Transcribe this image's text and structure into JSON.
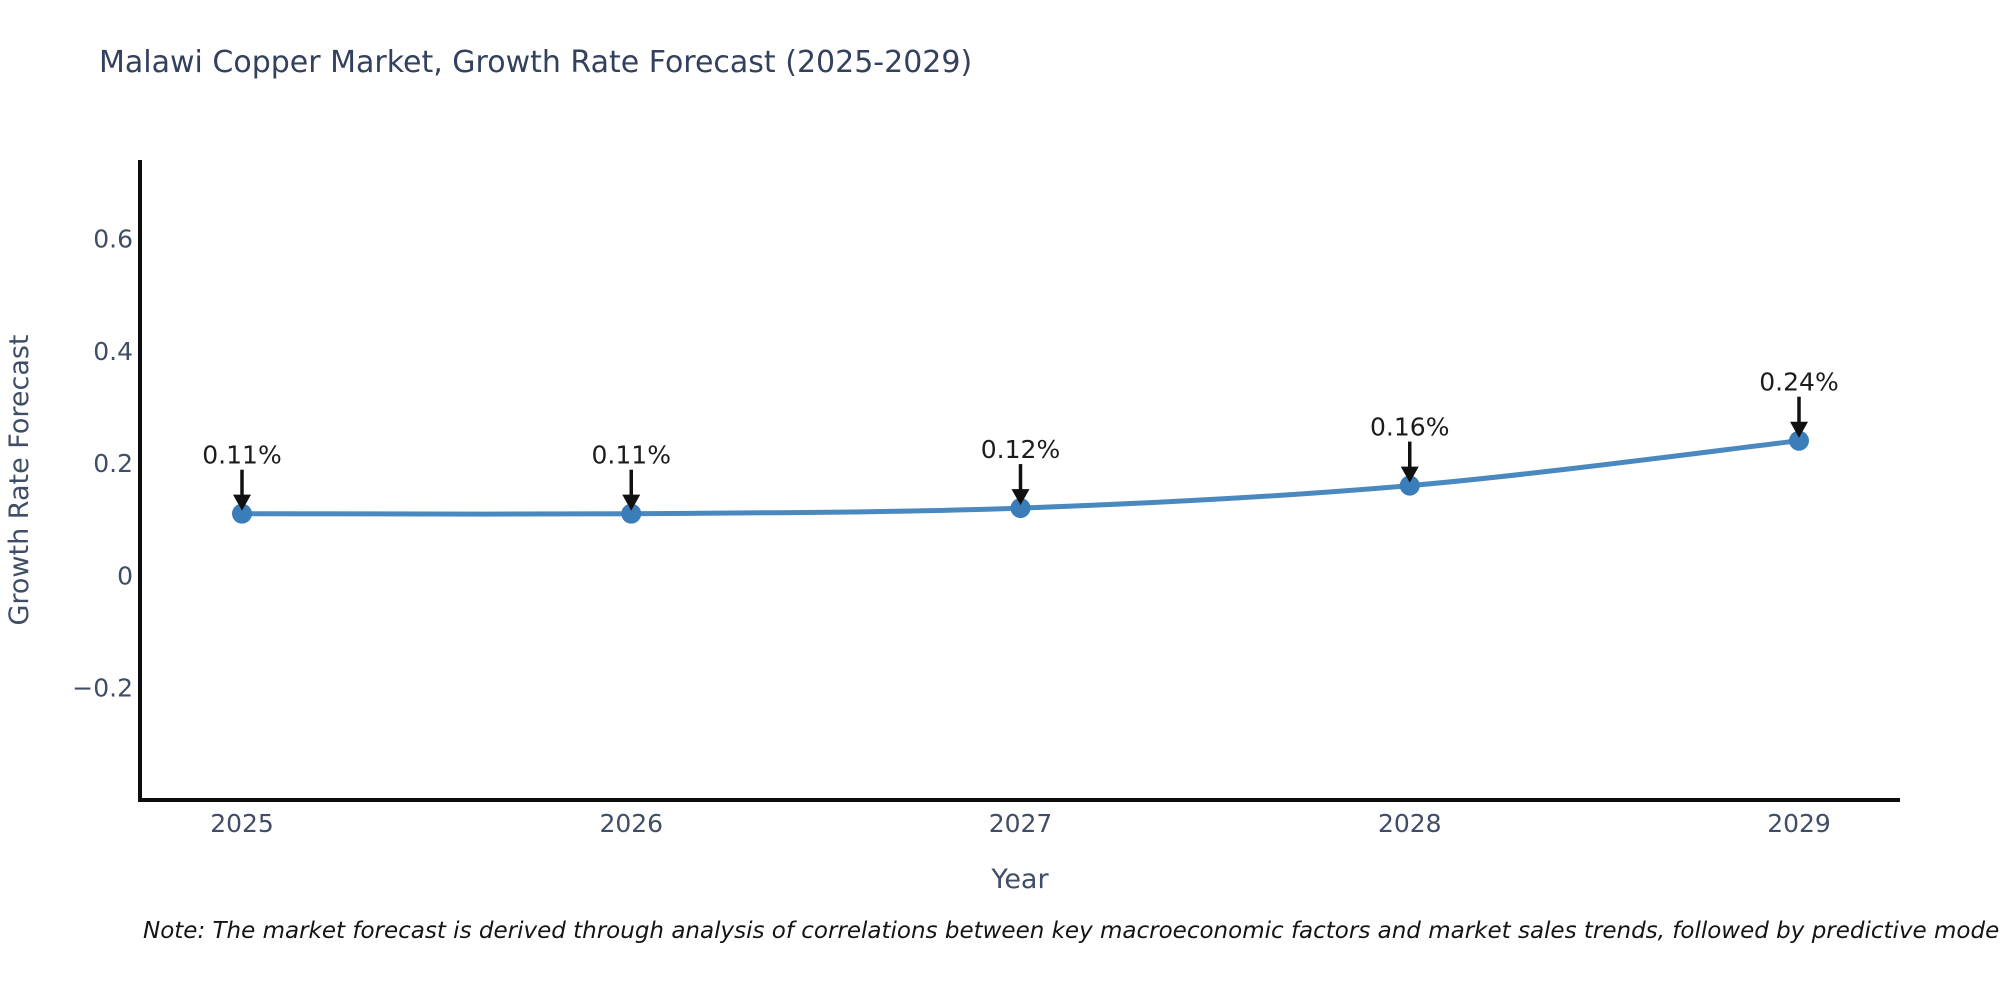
{
  "title": "Malawi Copper Market, Growth Rate Forecast (2025-2029)",
  "note": "Note: The market forecast is derived through analysis of correlations between key macroeconomic factors and market sales trends, followed by predictive modeling to project future sal",
  "colors": {
    "line": "#4a89c0",
    "marker": "#3a7db9",
    "spine": "#0d0d0d",
    "arrow": "#111111",
    "title_text": "#33415e",
    "tick_text": "#3f4d66",
    "annotation_text": "#1c1c1c"
  },
  "chart_data": {
    "type": "line",
    "title": "Malawi Copper Market, Growth Rate Forecast (2025-2029)",
    "xlabel": "Year",
    "ylabel": "Growth Rate Forecast",
    "x": [
      2025,
      2026,
      2027,
      2028,
      2029
    ],
    "categories": [
      "2025",
      "2026",
      "2027",
      "2028",
      "2029"
    ],
    "series": [
      {
        "name": "Growth Rate Forecast",
        "values": [
          0.11,
          0.11,
          0.12,
          0.16,
          0.24
        ]
      }
    ],
    "point_labels": [
      "0.11%",
      "0.11%",
      "0.12%",
      "0.16%",
      "0.24%"
    ],
    "yticks": [
      -0.2,
      0,
      0.2,
      0.4,
      0.6
    ],
    "ytick_labels": [
      "−0.2",
      "0",
      "0.2",
      "0.4",
      "0.6"
    ],
    "ylim": [
      -0.4,
      0.74
    ],
    "grid": false,
    "legend": "none",
    "marker": "circle",
    "annotations": "arrow-down-to-point"
  }
}
